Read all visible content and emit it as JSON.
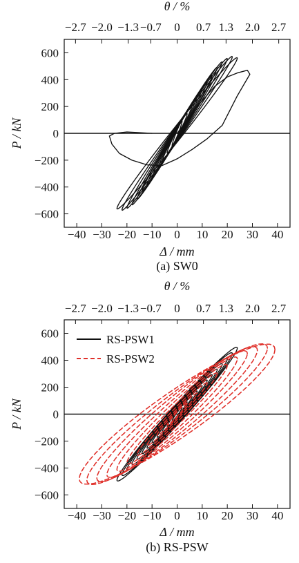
{
  "chart_data": [
    {
      "type": "line",
      "title": "",
      "caption": "(a) SW0",
      "xlabel": "Δ / mm",
      "ylabel": "P / kN",
      "top_axis_label": "θ / %",
      "xlim": [
        -45,
        45
      ],
      "ylim": [
        -700,
        700
      ],
      "xticks": [
        -40,
        -30,
        -20,
        -10,
        0,
        10,
        20,
        30,
        40
      ],
      "xticklabels": [
        "−40",
        "−30",
        "−20",
        "−10",
        "0",
        "10",
        "20",
        "30",
        "40"
      ],
      "yticks": [
        -600,
        -400,
        -200,
        0,
        200,
        400,
        600
      ],
      "yticklabels": [
        "−600",
        "−400",
        "−200",
        "0",
        "200",
        "400",
        "600"
      ],
      "top_ticks": [
        -40.5,
        -30,
        -19.5,
        -10.5,
        0,
        10.5,
        19.5,
        30,
        40.5
      ],
      "top_ticklabels": [
        "−2.7",
        "−2.0",
        "−1.3",
        "−0.7",
        "0",
        "0.7",
        "1.3",
        "2.0",
        "2.7"
      ],
      "grid": false,
      "legend": "",
      "series": [
        {
          "color": "#111111",
          "dash": "solid",
          "loops": [
            {
              "a": 2,
              "b": 90,
              "w": 22
            },
            {
              "a": 4,
              "b": 145,
              "w": 28
            },
            {
              "a": 6,
              "b": 210,
              "w": 32
            },
            {
              "a": 8,
              "b": 275,
              "w": 36
            },
            {
              "a": 10,
              "b": 330,
              "w": 40
            },
            {
              "a": 12,
              "b": 380,
              "w": 42
            },
            {
              "a": 14,
              "b": 430,
              "w": 46
            },
            {
              "a": 16,
              "b": 490,
              "w": 50
            },
            {
              "a": 18,
              "b": 530,
              "w": 54
            },
            {
              "a": 20,
              "b": 555,
              "w": 58
            },
            {
              "a": 22,
              "b": 570,
              "w": 62
            },
            {
              "a": 24,
              "b": 560,
              "w": 66
            }
          ],
          "points": [
            [
              0,
              0
            ],
            [
              8,
              200
            ],
            [
              15,
              350
            ],
            [
              20,
              420
            ],
            [
              24,
              450
            ],
            [
              28,
              470
            ],
            [
              29,
              440
            ],
            [
              24,
              280
            ],
            [
              18,
              60
            ],
            [
              12,
              -40
            ],
            [
              6,
              -120
            ],
            [
              0,
              -190
            ],
            [
              -6,
              -240
            ],
            [
              -12,
              -235
            ],
            [
              -18,
              -200
            ],
            [
              -23,
              -150
            ],
            [
              -26,
              -80
            ],
            [
              -27,
              -20
            ],
            [
              -25,
              0
            ],
            [
              -20,
              10
            ],
            [
              -10,
              0
            ]
          ]
        }
      ]
    },
    {
      "type": "line",
      "title": "",
      "caption": "(b) RS-PSW",
      "xlabel": "Δ / mm",
      "ylabel": "P / kN",
      "top_axis_label": "θ / %",
      "xlim": [
        -45,
        45
      ],
      "ylim": [
        -700,
        700
      ],
      "xticks": [
        -40,
        -30,
        -20,
        -10,
        0,
        10,
        20,
        30,
        40
      ],
      "xticklabels": [
        "−40",
        "−30",
        "−20",
        "−10",
        "0",
        "10",
        "20",
        "30",
        "40"
      ],
      "yticks": [
        -600,
        -400,
        -200,
        0,
        200,
        400,
        600
      ],
      "yticklabels": [
        "−600",
        "−400",
        "−200",
        "0",
        "200",
        "400",
        "600"
      ],
      "top_ticks": [
        -40.5,
        -30,
        -19.5,
        -10.5,
        0,
        10.5,
        19.5,
        30,
        40.5
      ],
      "top_ticklabels": [
        "−2.7",
        "−2.0",
        "−1.3",
        "−0.7",
        "0",
        "0.7",
        "1.3",
        "2.0",
        "2.7"
      ],
      "grid": false,
      "legend": "top-left",
      "series": [
        {
          "name": "RS-PSW1",
          "color": "#111111",
          "dash": "solid",
          "loops": [
            {
              "a": 2,
              "b": 50,
              "w": 12
            },
            {
              "a": 4,
              "b": 90,
              "w": 18
            },
            {
              "a": 6,
              "b": 130,
              "w": 22
            },
            {
              "a": 8,
              "b": 170,
              "w": 28
            },
            {
              "a": 10,
              "b": 210,
              "w": 34
            },
            {
              "a": 12,
              "b": 250,
              "w": 40
            },
            {
              "a": 14,
              "b": 290,
              "w": 46
            },
            {
              "a": 16,
              "b": 330,
              "w": 54
            },
            {
              "a": 18,
              "b": 370,
              "w": 62
            },
            {
              "a": 20,
              "b": 410,
              "w": 70
            },
            {
              "a": 22,
              "b": 450,
              "w": 76
            },
            {
              "a": 24,
              "b": 490,
              "w": 82
            }
          ]
        },
        {
          "name": "RS-PSW2",
          "color": "#e0302a",
          "dash": "dashed",
          "loops": [
            {
              "a": 4,
              "b": 80,
              "w": 16
            },
            {
              "a": 8,
              "b": 155,
              "w": 26
            },
            {
              "a": 12,
              "b": 230,
              "w": 40
            },
            {
              "a": 16,
              "b": 300,
              "w": 60
            },
            {
              "a": 20,
              "b": 360,
              "w": 85
            },
            {
              "a": 24,
              "b": 410,
              "w": 110
            },
            {
              "a": 28,
              "b": 450,
              "w": 135
            },
            {
              "a": 32,
              "b": 475,
              "w": 160
            },
            {
              "a": 36,
              "b": 490,
              "w": 180
            },
            {
              "a": 39,
              "b": 480,
              "w": 200
            }
          ]
        }
      ]
    }
  ]
}
